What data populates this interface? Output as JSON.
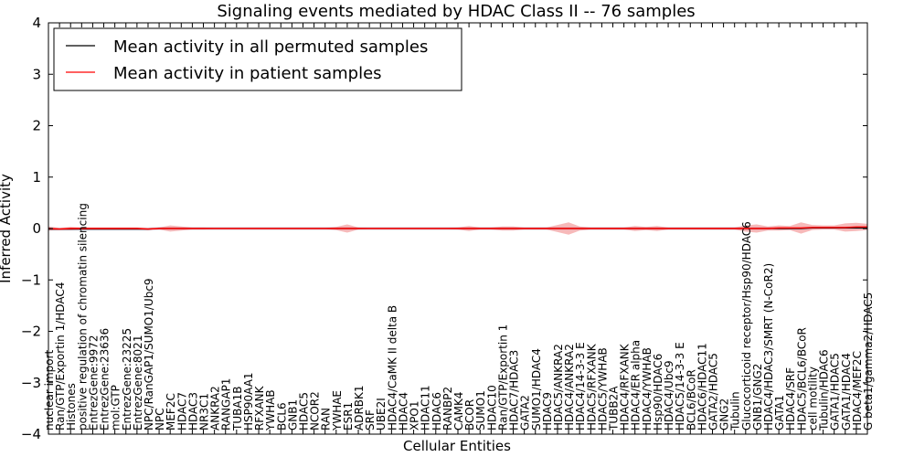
{
  "chart_data": {
    "type": "line",
    "title": "Signaling events mediated by HDAC Class II -- 76 samples",
    "xlabel": "Cellular Entities",
    "ylabel": "Inferred Activity",
    "ylim": [
      -4,
      4
    ],
    "yticks": [
      -4,
      -3,
      -2,
      -1,
      0,
      1,
      2,
      3,
      4
    ],
    "ytick_labels": [
      "−4",
      "−3",
      "−2",
      "−1",
      "0",
      "1",
      "2",
      "3",
      "4"
    ],
    "legend": {
      "placement": "top-left",
      "entries": [
        {
          "label": "Mean activity in all permuted samples",
          "color": "#000000"
        },
        {
          "label": "Mean activity in patient samples",
          "color": "#ff0000"
        }
      ]
    },
    "categories": [
      "nuclear import",
      "Ran/GTP/Exportin 1/HDAC4",
      "Histones",
      "positive regulation of chromatin silencing",
      "EntrezGene:9972",
      "EntrezGene:23636",
      "mol:GTP",
      "EntrezGene:23225",
      "EntrezGene:8021",
      "NPC/RanGAP1/SUMO1/Ubc9",
      "NPC",
      "MEF2C",
      "HDAC7",
      "HDAC3",
      "NR3C1",
      "ANKRA2",
      "RANGAP1",
      "TUBA1B",
      "HSP90AA1",
      "RFXANK",
      "YWHAB",
      "BCL6",
      "GNB1",
      "HDAC5",
      "NCOR2",
      "RAN",
      "YWHAE",
      "ESR1",
      "ADRBK1",
      "SRF",
      "UBE2I",
      "HDAC4/CaMK II delta B",
      "HDAC4",
      "XPO1",
      "HDAC11",
      "HDAC6",
      "RANBP2",
      "CAMK4",
      "BCOR",
      "SUMO1",
      "HDAC10",
      "Ran/GTP/Exportin 1",
      "HDAC7/HDAC3",
      "GATA2",
      "SUMO1/HDAC4",
      "HDAC9",
      "HDAC5/ANKRA2",
      "HDAC4/ANKRA2",
      "HDAC4/14-3-3 E",
      "HDAC5/RFXANK",
      "HDAC5/YWHAB",
      "TUBB2A",
      "HDAC4/RFXANK",
      "HDAC4/ER alpha",
      "HDAC4/YWHAB",
      "Hsp90/HDAC6",
      "HDAC4/Ubc9",
      "HDAC5/14-3-3 E",
      "BCL6/BCoR",
      "HDAC6/HDAC11",
      "GATA2/HDAC5",
      "GNG2",
      "Tubulin",
      "Glucocorticoid receptor/Hsp90/HDAC6",
      "GNB1/GNG2",
      "HDAC4/HDAC3/SMRT (N-CoR2)",
      "GATA1",
      "HDAC4/SRF",
      "HDAC5/BCL6/BCoR",
      "cell motility",
      "Tubulin/HDAC6",
      "GATA1/HDAC5",
      "GATA1/HDAC4",
      "HDAC4/MEF2C",
      "G beta1/gamma2/HDAC5"
    ],
    "series": [
      {
        "name": "Mean activity in all permuted samples",
        "color": "#000000",
        "values": [
          -0.01,
          -0.01,
          -0.01,
          -0.01,
          -0.01,
          -0.01,
          -0.01,
          -0.01,
          -0.01,
          -0.01,
          0,
          0,
          0,
          0,
          0,
          0,
          0,
          0,
          0,
          0,
          0,
          0,
          0,
          0,
          0,
          0,
          0,
          0,
          0,
          0,
          0,
          0,
          0,
          0,
          0,
          0,
          0,
          0,
          0,
          0,
          0,
          0,
          0,
          0,
          0,
          0,
          0,
          0,
          0,
          0,
          0,
          0,
          0,
          0,
          0,
          0,
          0,
          0,
          0,
          0,
          0,
          0,
          0,
          0,
          0,
          0,
          0,
          0,
          0,
          0.01,
          0.01,
          0.01,
          0.01,
          0.01,
          0.01
        ]
      },
      {
        "name": "Mean activity in patient samples",
        "color": "#ff0000",
        "values": [
          0,
          -0.01,
          0,
          0,
          0,
          0,
          0,
          0,
          0,
          -0.01,
          0,
          0,
          0,
          0,
          0,
          0,
          0,
          0,
          0,
          0,
          0,
          0,
          0,
          0,
          0,
          0,
          0,
          0,
          0,
          0,
          0,
          0,
          0,
          0,
          0,
          0,
          0,
          0,
          0,
          0,
          0,
          0,
          0,
          0,
          0,
          0,
          0,
          0,
          0,
          0,
          0,
          0,
          0,
          0,
          0,
          0,
          0,
          0,
          0,
          0,
          0,
          0,
          0,
          0,
          0,
          0,
          0.01,
          0.01,
          0.01,
          0.02,
          0.02,
          0.02,
          0.02,
          0.03,
          0.03
        ]
      }
    ],
    "patient_spread": [
      0.04,
      0.02,
      0.03,
      0.02,
      0.02,
      0.02,
      0.02,
      0.02,
      0.02,
      0.02,
      0.02,
      0.06,
      0.04,
      0.02,
      0.02,
      0.01,
      0.01,
      0.01,
      0.01,
      0.01,
      0.01,
      0.01,
      0.01,
      0.01,
      0.01,
      0.01,
      0.03,
      0.08,
      0.02,
      0.01,
      0.01,
      0.01,
      0.01,
      0.01,
      0.01,
      0.01,
      0.01,
      0.02,
      0.05,
      0.02,
      0.02,
      0.04,
      0.04,
      0.02,
      0.02,
      0.02,
      0.07,
      0.12,
      0.04,
      0.02,
      0.02,
      0.02,
      0.02,
      0.05,
      0.03,
      0.05,
      0.02,
      0.02,
      0.02,
      0.02,
      0.02,
      0.02,
      0.02,
      0.06,
      0.08,
      0.04,
      0.05,
      0.04,
      0.11,
      0.05,
      0.04,
      0.04,
      0.08,
      0.08,
      0.06
    ],
    "permuted_spread": [
      0.03,
      0.03,
      0.03,
      0.03,
      0.03,
      0.03,
      0.03,
      0.03,
      0.03,
      0.03,
      0.03,
      0.03,
      0.03,
      0.03,
      0.03,
      0.03,
      0.03,
      0.03,
      0.03,
      0.03,
      0.03,
      0.03,
      0.03,
      0.03,
      0.03,
      0.03,
      0.03,
      0.03,
      0.03,
      0.03,
      0.03,
      0.03,
      0.03,
      0.03,
      0.03,
      0.03,
      0.03,
      0.03,
      0.03,
      0.03,
      0.03,
      0.03,
      0.03,
      0.03,
      0.03,
      0.03,
      0.03,
      0.03,
      0.03,
      0.03,
      0.03,
      0.03,
      0.03,
      0.03,
      0.03,
      0.03,
      0.03,
      0.03,
      0.03,
      0.03,
      0.03,
      0.03,
      0.03,
      0.03,
      0.03,
      0.03,
      0.03,
      0.03,
      0.03,
      0.03,
      0.03,
      0.03,
      0.03,
      0.03,
      0.03
    ]
  }
}
